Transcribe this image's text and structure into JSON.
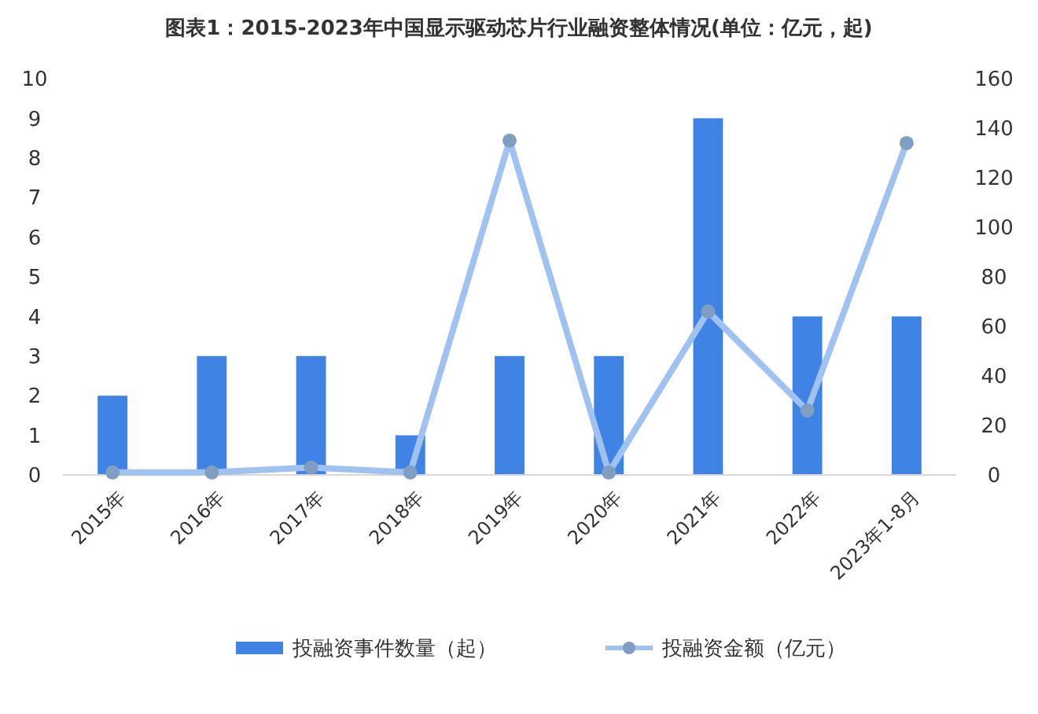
{
  "chart_data": {
    "type": "bar",
    "title": "图表1：2015-2023年中国显示驱动芯片行业融资整体情况(单位：亿元，起)",
    "categories": [
      "2015年",
      "2016年",
      "2017年",
      "2018年",
      "2019年",
      "2020年",
      "2021年",
      "2022年",
      "2023年1-8月"
    ],
    "series": [
      {
        "name": "投融资事件数量（起）",
        "color": "#3f84e5",
        "values": [
          2,
          3,
          3,
          1,
          3,
          3,
          9,
          4,
          4
        ]
      },
      {
        "name": "投融资金额（亿元）",
        "type": "line",
        "axis": "y2",
        "color": "#9fc2f0",
        "marker": "circle",
        "values": [
          1,
          1,
          3,
          1,
          135,
          1,
          66,
          26,
          134
        ]
      }
    ],
    "ylim": [
      0,
      10
    ],
    "yticks": [
      0,
      1,
      2,
      3,
      4,
      5,
      6,
      7,
      8,
      9,
      10
    ],
    "y2lim": [
      0,
      160
    ],
    "y2ticks": [
      0,
      20,
      40,
      60,
      80,
      100,
      120,
      140,
      160
    ],
    "grid": false,
    "legend": "bottom"
  }
}
